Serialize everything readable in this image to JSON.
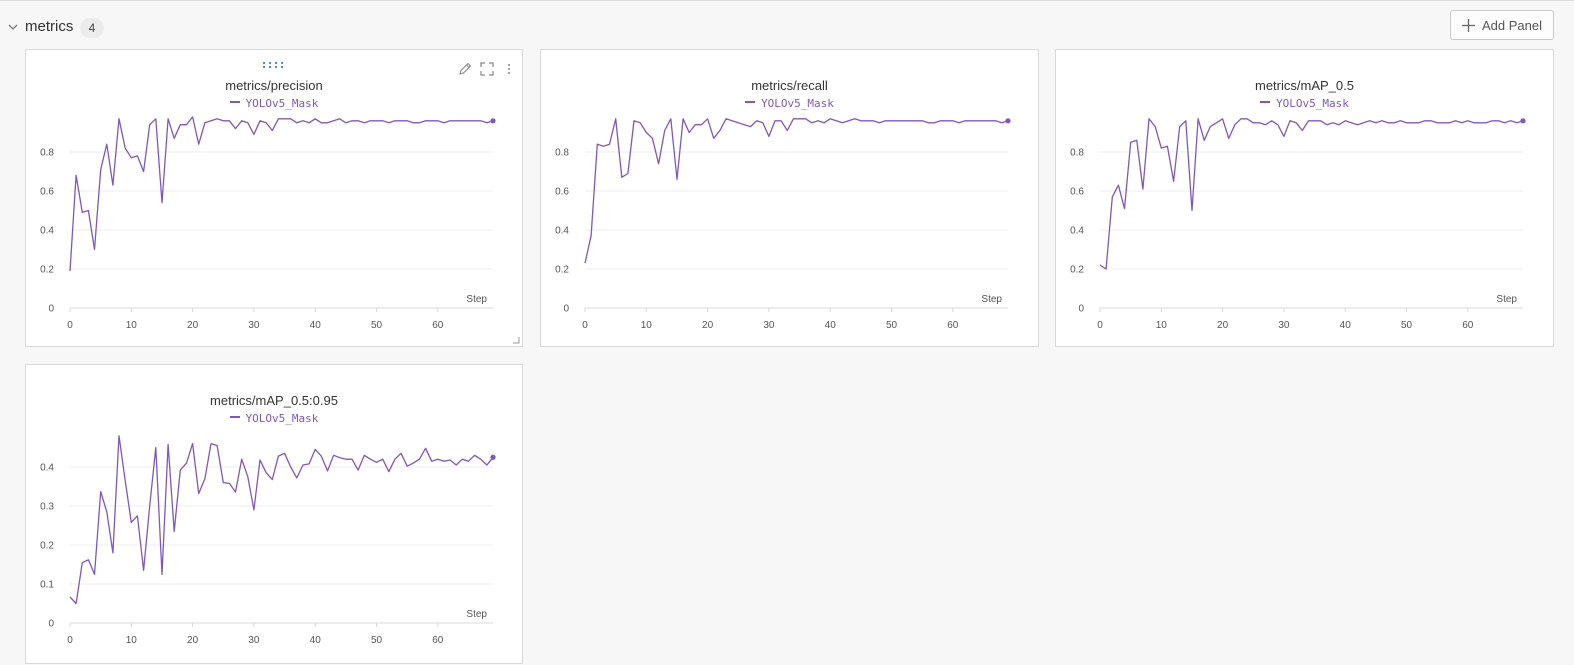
{
  "section": {
    "title": "metrics",
    "count": "4"
  },
  "toolbar": {
    "add_panel_label": "Add Panel"
  },
  "colors": {
    "series": "#7e57c2",
    "grid": "#eeeeee",
    "axis": "#d8d8d8",
    "tick_text": "#555555"
  },
  "icons": [
    "chevron-down-icon",
    "plus-icon",
    "drag-handle-icon",
    "pencil-icon",
    "fullscreen-icon",
    "more-vertical-icon",
    "resize-handle-icon"
  ],
  "panels": [
    {
      "title": "metrics/precision",
      "legend": "YOLOv5_Mask",
      "xlabel": "Step",
      "yticks": [
        "0",
        "0.2",
        "0.4",
        "0.6",
        "0.8"
      ],
      "xticks": [
        "0",
        "10",
        "20",
        "30",
        "40",
        "50",
        "60"
      ]
    },
    {
      "title": "metrics/recall",
      "legend": "YOLOv5_Mask",
      "xlabel": "Step",
      "yticks": [
        "0",
        "0.2",
        "0.4",
        "0.6",
        "0.8"
      ],
      "xticks": [
        "0",
        "10",
        "20",
        "30",
        "40",
        "50",
        "60"
      ]
    },
    {
      "title": "metrics/mAP_0.5",
      "legend": "YOLOv5_Mask",
      "xlabel": "Step",
      "yticks": [
        "0",
        "0.2",
        "0.4",
        "0.6",
        "0.8"
      ],
      "xticks": [
        "0",
        "10",
        "20",
        "30",
        "40",
        "50",
        "60"
      ]
    },
    {
      "title": "metrics/mAP_0.5:0.95",
      "legend": "YOLOv5_Mask",
      "xlabel": "Step",
      "yticks": [
        "0",
        "0.1",
        "0.2",
        "0.3",
        "0.4"
      ],
      "xticks": [
        "0",
        "10",
        "20",
        "30",
        "40",
        "50",
        "60"
      ]
    }
  ],
  "chart_data": [
    {
      "type": "line",
      "title": "metrics/precision",
      "xlabel": "Step",
      "ylabel": "",
      "xlim": [
        0,
        69
      ],
      "ylim": [
        0,
        1.0
      ],
      "grid": true,
      "legend_position": "top-center",
      "series": [
        {
          "name": "YOLOv5_Mask",
          "color": "#7e57c2",
          "x": [
            0,
            1,
            2,
            3,
            4,
            5,
            6,
            7,
            8,
            9,
            10,
            11,
            12,
            13,
            14,
            15,
            16,
            17,
            18,
            19,
            20,
            21,
            22,
            23,
            24,
            25,
            26,
            27,
            28,
            29,
            30,
            31,
            32,
            33,
            34,
            35,
            36,
            37,
            38,
            39,
            40,
            41,
            42,
            43,
            44,
            45,
            46,
            47,
            48,
            49,
            50,
            51,
            52,
            53,
            54,
            55,
            56,
            57,
            58,
            59,
            60,
            61,
            62,
            63,
            64,
            65,
            66,
            67,
            68,
            69
          ],
          "y": [
            0.19,
            0.68,
            0.49,
            0.5,
            0.3,
            0.71,
            0.84,
            0.63,
            0.97,
            0.82,
            0.77,
            0.78,
            0.7,
            0.94,
            0.97,
            0.54,
            0.97,
            0.87,
            0.94,
            0.94,
            0.98,
            0.84,
            0.95,
            0.96,
            0.97,
            0.96,
            0.96,
            0.92,
            0.96,
            0.95,
            0.89,
            0.96,
            0.95,
            0.91,
            0.97,
            0.97,
            0.97,
            0.95,
            0.96,
            0.95,
            0.97,
            0.95,
            0.95,
            0.96,
            0.97,
            0.95,
            0.96,
            0.96,
            0.95,
            0.96,
            0.96,
            0.96,
            0.95,
            0.96,
            0.96,
            0.96,
            0.95,
            0.95,
            0.96,
            0.96,
            0.96,
            0.95,
            0.96,
            0.96,
            0.96,
            0.96,
            0.96,
            0.96,
            0.95,
            0.96
          ]
        }
      ]
    },
    {
      "type": "line",
      "title": "metrics/recall",
      "xlabel": "Step",
      "ylabel": "",
      "xlim": [
        0,
        69
      ],
      "ylim": [
        0,
        1.0
      ],
      "grid": true,
      "legend_position": "top-center",
      "series": [
        {
          "name": "YOLOv5_Mask",
          "color": "#7e57c2",
          "x": [
            0,
            1,
            2,
            3,
            4,
            5,
            6,
            7,
            8,
            9,
            10,
            11,
            12,
            13,
            14,
            15,
            16,
            17,
            18,
            19,
            20,
            21,
            22,
            23,
            24,
            25,
            26,
            27,
            28,
            29,
            30,
            31,
            32,
            33,
            34,
            35,
            36,
            37,
            38,
            39,
            40,
            41,
            42,
            43,
            44,
            45,
            46,
            47,
            48,
            49,
            50,
            51,
            52,
            53,
            54,
            55,
            56,
            57,
            58,
            59,
            60,
            61,
            62,
            63,
            64,
            65,
            66,
            67,
            68,
            69
          ],
          "y": [
            0.23,
            0.37,
            0.84,
            0.83,
            0.84,
            0.97,
            0.67,
            0.69,
            0.96,
            0.95,
            0.9,
            0.87,
            0.74,
            0.91,
            0.97,
            0.66,
            0.97,
            0.9,
            0.94,
            0.94,
            0.97,
            0.87,
            0.91,
            0.97,
            0.96,
            0.95,
            0.94,
            0.93,
            0.96,
            0.95,
            0.88,
            0.96,
            0.96,
            0.91,
            0.97,
            0.97,
            0.97,
            0.95,
            0.96,
            0.95,
            0.97,
            0.96,
            0.95,
            0.96,
            0.97,
            0.96,
            0.96,
            0.96,
            0.95,
            0.96,
            0.96,
            0.96,
            0.96,
            0.96,
            0.96,
            0.96,
            0.95,
            0.95,
            0.96,
            0.96,
            0.96,
            0.95,
            0.96,
            0.96,
            0.96,
            0.96,
            0.96,
            0.96,
            0.95,
            0.96
          ]
        }
      ]
    },
    {
      "type": "line",
      "title": "metrics/mAP_0.5",
      "xlabel": "Step",
      "ylabel": "",
      "xlim": [
        0,
        69
      ],
      "ylim": [
        0,
        1.0
      ],
      "grid": true,
      "legend_position": "top-center",
      "series": [
        {
          "name": "YOLOv5_Mask",
          "color": "#7e57c2",
          "x": [
            0,
            1,
            2,
            3,
            4,
            5,
            6,
            7,
            8,
            9,
            10,
            11,
            12,
            13,
            14,
            15,
            16,
            17,
            18,
            19,
            20,
            21,
            22,
            23,
            24,
            25,
            26,
            27,
            28,
            29,
            30,
            31,
            32,
            33,
            34,
            35,
            36,
            37,
            38,
            39,
            40,
            41,
            42,
            43,
            44,
            45,
            46,
            47,
            48,
            49,
            50,
            51,
            52,
            53,
            54,
            55,
            56,
            57,
            58,
            59,
            60,
            61,
            62,
            63,
            64,
            65,
            66,
            67,
            68,
            69
          ],
          "y": [
            0.22,
            0.2,
            0.57,
            0.63,
            0.51,
            0.85,
            0.86,
            0.61,
            0.97,
            0.93,
            0.82,
            0.83,
            0.65,
            0.93,
            0.96,
            0.5,
            0.97,
            0.86,
            0.93,
            0.95,
            0.97,
            0.87,
            0.94,
            0.97,
            0.97,
            0.95,
            0.95,
            0.94,
            0.96,
            0.94,
            0.88,
            0.96,
            0.95,
            0.91,
            0.96,
            0.96,
            0.96,
            0.94,
            0.95,
            0.94,
            0.96,
            0.95,
            0.94,
            0.95,
            0.96,
            0.95,
            0.96,
            0.95,
            0.95,
            0.96,
            0.95,
            0.95,
            0.95,
            0.96,
            0.96,
            0.95,
            0.95,
            0.95,
            0.96,
            0.95,
            0.96,
            0.95,
            0.95,
            0.95,
            0.96,
            0.96,
            0.95,
            0.96,
            0.95,
            0.96
          ]
        }
      ]
    },
    {
      "type": "line",
      "title": "metrics/mAP_0.5:0.95",
      "xlabel": "Step",
      "ylabel": "",
      "xlim": [
        0,
        69
      ],
      "ylim": [
        0,
        0.5
      ],
      "grid": true,
      "legend_position": "top-center",
      "series": [
        {
          "name": "YOLOv5_Mask",
          "color": "#7e57c2",
          "x": [
            0,
            1,
            2,
            3,
            4,
            5,
            6,
            7,
            8,
            9,
            10,
            11,
            12,
            13,
            14,
            15,
            16,
            17,
            18,
            19,
            20,
            21,
            22,
            23,
            24,
            25,
            26,
            27,
            28,
            29,
            30,
            31,
            32,
            33,
            34,
            35,
            36,
            37,
            38,
            39,
            40,
            41,
            42,
            43,
            44,
            45,
            46,
            47,
            48,
            49,
            50,
            51,
            52,
            53,
            54,
            55,
            56,
            57,
            58,
            59,
            60,
            61,
            62,
            63,
            64,
            65,
            66,
            67,
            68,
            69
          ],
          "y": [
            0.067,
            0.05,
            0.155,
            0.162,
            0.125,
            0.337,
            0.285,
            0.18,
            0.48,
            0.365,
            0.258,
            0.275,
            0.135,
            0.3,
            0.45,
            0.125,
            0.458,
            0.235,
            0.392,
            0.41,
            0.46,
            0.332,
            0.37,
            0.46,
            0.455,
            0.36,
            0.358,
            0.336,
            0.42,
            0.375,
            0.29,
            0.418,
            0.385,
            0.368,
            0.428,
            0.435,
            0.4,
            0.372,
            0.405,
            0.408,
            0.445,
            0.428,
            0.39,
            0.43,
            0.424,
            0.42,
            0.42,
            0.392,
            0.43,
            0.42,
            0.412,
            0.42,
            0.388,
            0.42,
            0.435,
            0.402,
            0.41,
            0.42,
            0.448,
            0.415,
            0.42,
            0.415,
            0.418,
            0.405,
            0.42,
            0.415,
            0.43,
            0.42,
            0.405,
            0.425
          ]
        }
      ]
    }
  ]
}
